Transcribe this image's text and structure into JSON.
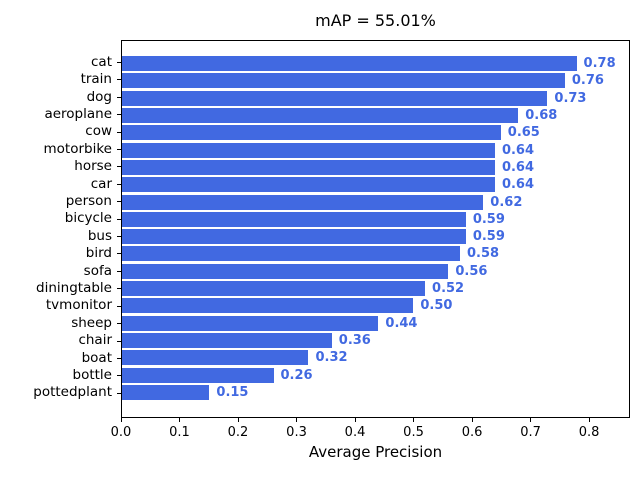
{
  "chart_data": {
    "type": "bar",
    "orientation": "horizontal",
    "title": "mAP = 55.01%",
    "xlabel": "Average Precision",
    "ylabel": "",
    "categories": [
      "cat",
      "train",
      "dog",
      "aeroplane",
      "cow",
      "motorbike",
      "horse",
      "car",
      "person",
      "bicycle",
      "bus",
      "bird",
      "sofa",
      "diningtable",
      "tvmonitor",
      "sheep",
      "chair",
      "boat",
      "bottle",
      "pottedplant"
    ],
    "values": [
      0.78,
      0.76,
      0.73,
      0.68,
      0.65,
      0.64,
      0.64,
      0.64,
      0.62,
      0.59,
      0.59,
      0.58,
      0.56,
      0.52,
      0.5,
      0.44,
      0.36,
      0.32,
      0.26,
      0.15
    ],
    "value_labels": [
      "0.78",
      "0.76",
      "0.73",
      "0.68",
      "0.65",
      "0.64",
      "0.64",
      "0.64",
      "0.62",
      "0.59",
      "0.59",
      "0.58",
      "0.56",
      "0.52",
      "0.50",
      "0.44",
      "0.36",
      "0.32",
      "0.26",
      "0.15"
    ],
    "xlim": [
      0,
      0.87
    ],
    "xticks": [
      0.0,
      0.1,
      0.2,
      0.3,
      0.4,
      0.5,
      0.6,
      0.7,
      0.8
    ],
    "xtick_labels": [
      "0.0",
      "0.1",
      "0.2",
      "0.3",
      "0.4",
      "0.5",
      "0.6",
      "0.7",
      "0.8"
    ],
    "grid": false,
    "legend": false,
    "bar_color": "#4169e1",
    "value_label_color": "#4169e1",
    "axis_color": "#000000",
    "background_color": "#ffffff"
  }
}
